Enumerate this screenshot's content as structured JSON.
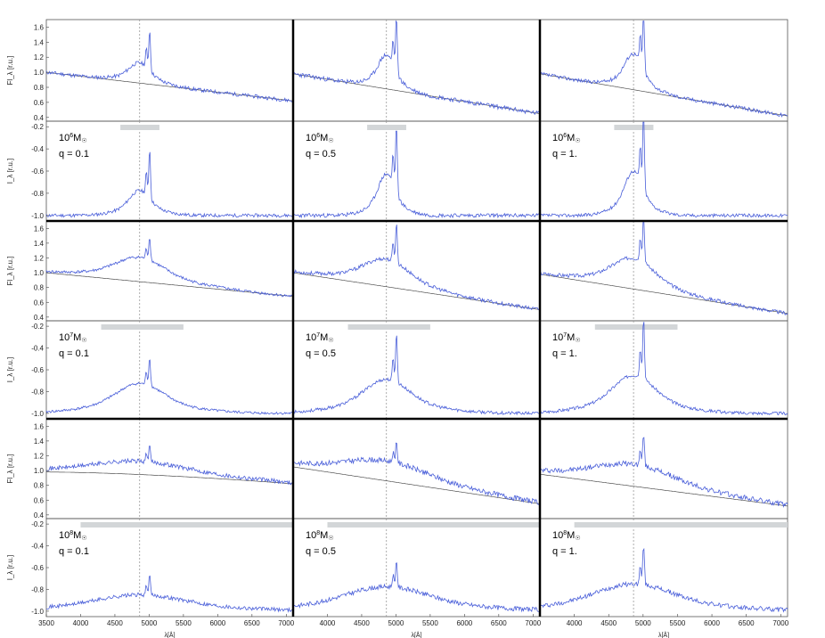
{
  "chart_data": {
    "type": "line",
    "layout_grid": {
      "rows": 6,
      "cols": 3
    },
    "x_axis": {
      "label": "λ[Å]",
      "range": [
        3500,
        7100
      ],
      "ticks": [
        3500,
        4000,
        4500,
        5000,
        5500,
        6000,
        6500,
        7000
      ]
    },
    "flux_axis": {
      "label": "Fl_λ [r.u.]",
      "ticks": [
        0.4,
        0.6,
        0.8,
        1.0,
        1.2,
        1.4,
        1.6
      ],
      "range": [
        0.35,
        1.7
      ]
    },
    "index_axis": {
      "label": "I_λ [r.u.]",
      "ticks": [
        -0.2,
        -0.4,
        -0.6,
        -0.8,
        -1.0
      ],
      "range": [
        -1.05,
        -0.15
      ]
    },
    "reference_line_x": 4861,
    "colors": {
      "spectrum": "#4a5fd9",
      "continuum": "#333333",
      "band": "#d3d6d8",
      "ref": "#999999"
    },
    "panels": [
      {
        "mass": "10",
        "mass_exp": "6",
        "mass_unit": "M",
        "q": "q = 0.1",
        "band": [
          4580,
          5150
        ],
        "cont_start": 1.0,
        "cont_end": 0.62,
        "cont_shape": "linear",
        "noise": 0.025,
        "broad_amp": 0.18,
        "broad_width": 140,
        "narrow_amp": 0.55,
        "seed": 11
      },
      {
        "mass": "10",
        "mass_exp": "6",
        "mass_unit": "M",
        "q": "q = 0.5",
        "band": [
          4580,
          5150
        ],
        "cont_start": 0.98,
        "cont_end": 0.45,
        "cont_shape": "linear",
        "noise": 0.03,
        "broad_amp": 0.3,
        "broad_width": 110,
        "narrow_amp": 0.75,
        "seed": 23
      },
      {
        "mass": "10",
        "mass_exp": "6",
        "mass_unit": "M",
        "q": "q = 1.",
        "band": [
          4580,
          5150
        ],
        "cont_start": 0.98,
        "cont_end": 0.42,
        "cont_shape": "linear",
        "noise": 0.025,
        "broad_amp": 0.32,
        "broad_width": 120,
        "narrow_amp": 0.85,
        "seed": 37
      },
      {
        "mass": "10",
        "mass_exp": "7",
        "mass_unit": "M",
        "q": "q = 0.1",
        "band": [
          4300,
          5500
        ],
        "cont_start": 1.0,
        "cont_end": 0.68,
        "cont_shape": "linear",
        "noise": 0.02,
        "broad_amp": 0.22,
        "broad_width": 320,
        "narrow_amp": 0.32,
        "seed": 41
      },
      {
        "mass": "10",
        "mass_exp": "7",
        "mass_unit": "M",
        "q": "q = 0.5",
        "band": [
          4300,
          5500
        ],
        "cont_start": 1.0,
        "cont_end": 0.5,
        "cont_shape": "linear",
        "noise": 0.025,
        "broad_amp": 0.25,
        "broad_width": 300,
        "narrow_amp": 0.55,
        "seed": 53
      },
      {
        "mass": "10",
        "mass_exp": "7",
        "mass_unit": "M",
        "q": "q = 1.",
        "band": [
          4300,
          5500
        ],
        "cont_start": 0.98,
        "cont_end": 0.45,
        "cont_shape": "linear",
        "noise": 0.025,
        "broad_amp": 0.28,
        "broad_width": 280,
        "narrow_amp": 0.7,
        "seed": 67
      },
      {
        "mass": "10",
        "mass_exp": "8",
        "mass_unit": "M",
        "q": "q = 0.1",
        "band": [
          4000,
          7100
        ],
        "cont_start": 0.98,
        "cont_end": 0.82,
        "cont_shape": "curved",
        "noise": 0.03,
        "broad_amp": 0.12,
        "broad_width": 600,
        "narrow_amp": 0.22,
        "seed": 71
      },
      {
        "mass": "10",
        "mass_exp": "8",
        "mass_unit": "M",
        "q": "q = 0.5",
        "band": [
          4000,
          7100
        ],
        "cont_start": 1.05,
        "cont_end": 0.55,
        "cont_shape": "linear",
        "noise": 0.035,
        "broad_amp": 0.18,
        "broad_width": 550,
        "narrow_amp": 0.3,
        "seed": 83
      },
      {
        "mass": "10",
        "mass_exp": "8",
        "mass_unit": "M",
        "q": "q = 1.",
        "band": [
          4000,
          7100
        ],
        "cont_start": 0.95,
        "cont_end": 0.52,
        "cont_shape": "linear",
        "noise": 0.035,
        "broad_amp": 0.2,
        "broad_width": 520,
        "narrow_amp": 0.45,
        "seed": 97
      }
    ]
  }
}
